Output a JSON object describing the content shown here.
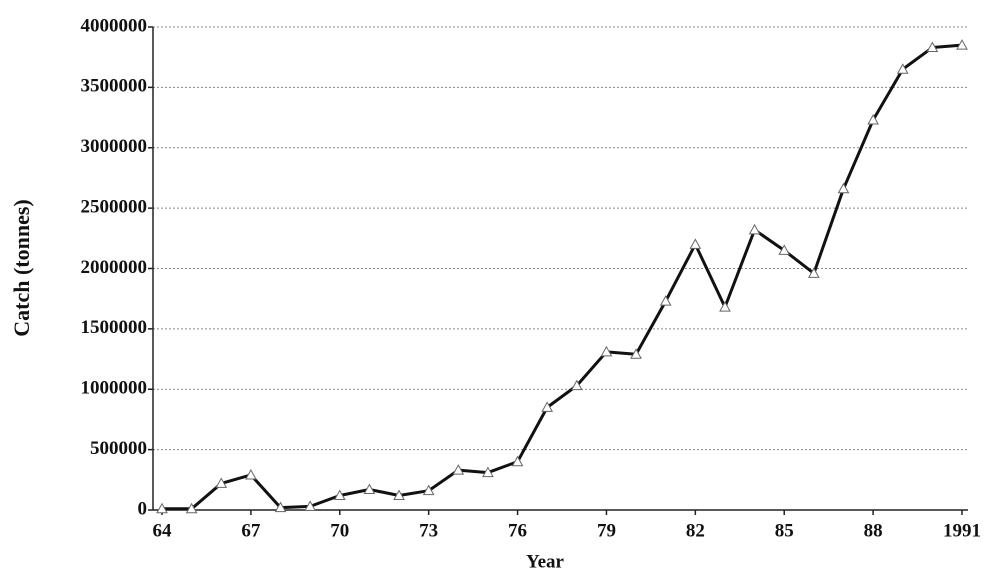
{
  "chart_data": {
    "type": "line",
    "x_label": "Year",
    "y_label": "Catch (tonnes)",
    "categories": [
      "64",
      null,
      null,
      "67",
      null,
      null,
      "70",
      null,
      null,
      "73",
      null,
      null,
      "76",
      null,
      null,
      "79",
      null,
      null,
      "82",
      null,
      null,
      "85",
      null,
      null,
      "88",
      null,
      null,
      "1991"
    ],
    "values": [
      10000,
      10000,
      220000,
      290000,
      20000,
      30000,
      120000,
      170000,
      120000,
      160000,
      330000,
      310000,
      400000,
      850000,
      1030000,
      1310000,
      1290000,
      1730000,
      2200000,
      1680000,
      2320000,
      2150000,
      1960000,
      2660000,
      3230000,
      3650000,
      3830000,
      3850000
    ],
    "color": "#111111",
    "ylim": [
      0,
      4000000
    ],
    "yticks": [
      0,
      500000,
      1000000,
      1500000,
      2000000,
      2500000,
      3000000,
      3500000,
      4000000
    ],
    "grid": true
  }
}
